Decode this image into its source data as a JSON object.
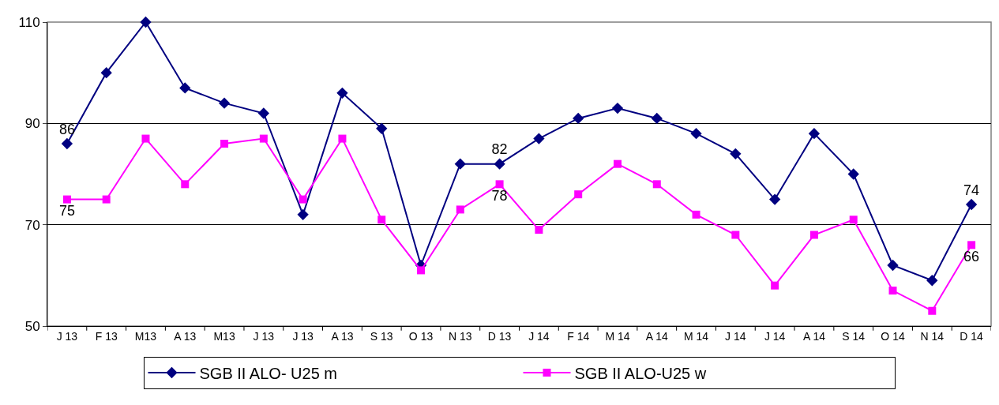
{
  "chart_data": {
    "type": "line",
    "categories": [
      "J 13",
      "F 13",
      "M13",
      "A 13",
      "M13",
      "J 13",
      "J 13",
      "A 13",
      "S 13",
      "O 13",
      "N 13",
      "D 13",
      "J 14",
      "F 14",
      "M 14",
      "A 14",
      "M 14",
      "J 14",
      "J 14",
      "A 14",
      "S 14",
      "O 14",
      "N 14",
      "D 14"
    ],
    "series": [
      {
        "name": "SGB II ALO- U25 m",
        "color": "#000080",
        "marker": "diamond",
        "values": [
          86,
          100,
          110,
          97,
          94,
          92,
          72,
          96,
          89,
          62,
          82,
          82,
          87,
          91,
          93,
          91,
          88,
          84,
          75,
          88,
          80,
          62,
          59,
          74
        ],
        "value_labels": [
          "86",
          null,
          null,
          null,
          null,
          null,
          null,
          null,
          null,
          null,
          null,
          "82",
          null,
          null,
          null,
          null,
          null,
          null,
          null,
          null,
          null,
          null,
          null,
          "74"
        ]
      },
      {
        "name": "SGB II ALO-U25 w",
        "color": "#ff00ff",
        "marker": "square",
        "values": [
          75,
          75,
          87,
          78,
          86,
          87,
          75,
          87,
          71,
          61,
          73,
          78,
          69,
          76,
          82,
          78,
          72,
          68,
          58,
          68,
          71,
          57,
          53,
          66
        ],
        "value_labels": [
          "75",
          null,
          null,
          null,
          null,
          null,
          null,
          null,
          null,
          null,
          null,
          "78",
          null,
          null,
          null,
          null,
          null,
          null,
          null,
          null,
          null,
          null,
          null,
          "66"
        ]
      }
    ],
    "ylim": [
      50,
      110
    ],
    "yticks": [
      50,
      70,
      90,
      110
    ],
    "grid": "y",
    "legend": "bottom"
  }
}
